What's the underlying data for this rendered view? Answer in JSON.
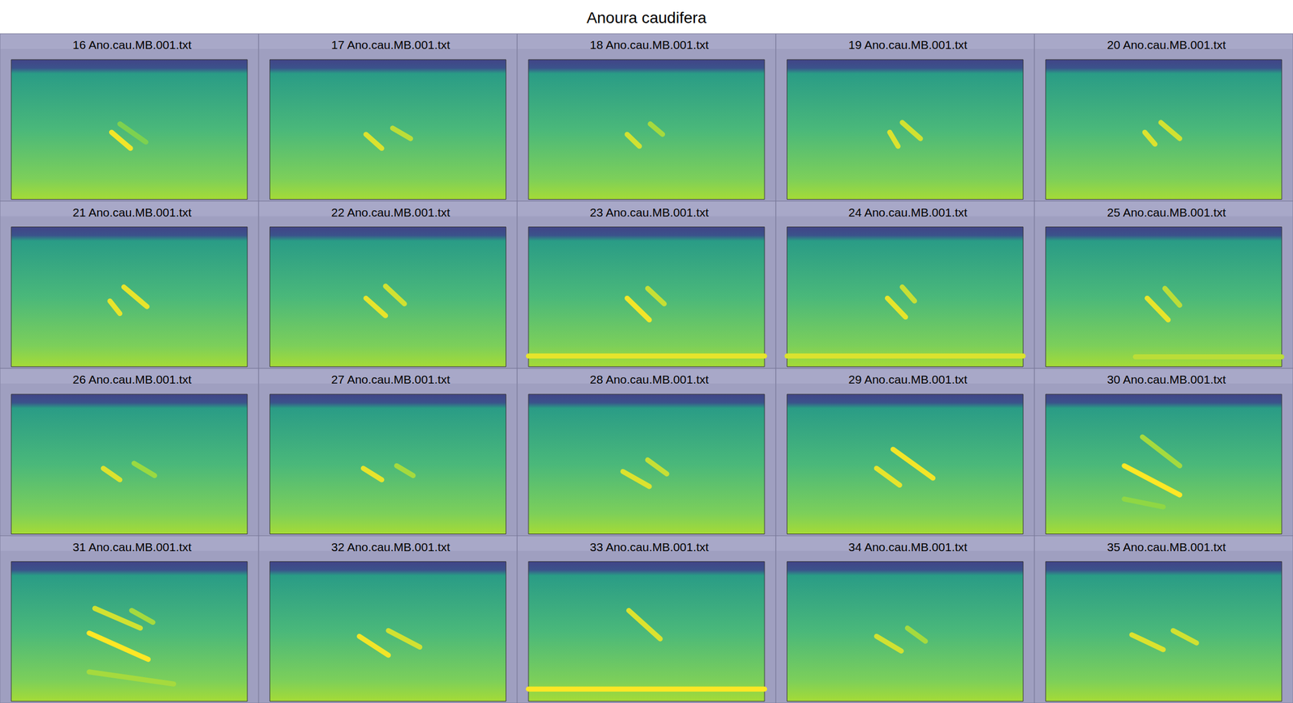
{
  "chart_data": {
    "type": "spectrogram",
    "title": "Anoura caudifera",
    "tick_labels": false,
    "grid": false,
    "xlim": [
      0,
      100
    ],
    "ylim": [
      0,
      100
    ],
    "panels": [
      {
        "title": "16 Ano.cau.MB.001.txt",
        "calls": [
          {
            "x": [
              42.5,
              50.5
            ],
            "y": [
              48,
              36.5
            ],
            "level": 0.95
          },
          {
            "x": [
              46,
              57
            ],
            "y": [
              54,
              41
            ],
            "level": 0.4
          }
        ]
      },
      {
        "title": "17 Ano.cau.MB.001.txt",
        "calls": [
          {
            "x": [
              40.7,
              47.4
            ],
            "y": [
              46.5,
              36.5
            ],
            "level": 0.85
          },
          {
            "x": [
              52,
              59.6
            ],
            "y": [
              51,
              43.5
            ],
            "level": 0.7
          }
        ]
      },
      {
        "title": "18 Ano.cau.MB.001.txt",
        "calls": [
          {
            "x": [
              41.8,
              47
            ],
            "y": [
              46.5,
              38
            ],
            "level": 0.8
          },
          {
            "x": [
              51.6,
              56.8
            ],
            "y": [
              54,
              46.5
            ],
            "level": 0.6
          }
        ]
      },
      {
        "title": "19 Ano.cau.MB.001.txt",
        "calls": [
          {
            "x": [
              43.5,
              47
            ],
            "y": [
              48,
              38
            ],
            "level": 0.85
          },
          {
            "x": [
              48.8,
              56.5
            ],
            "y": [
              55,
              43.5
            ],
            "level": 0.8
          }
        ]
      },
      {
        "title": "20 Ano.cau.MB.001.txt",
        "calls": [
          {
            "x": [
              42,
              46.3
            ],
            "y": [
              48,
              39.5
            ],
            "level": 0.85
          },
          {
            "x": [
              48.8,
              56.8
            ],
            "y": [
              55,
              43.5
            ],
            "level": 0.8
          }
        ]
      },
      {
        "title": "21 Ano.cau.MB.001.txt",
        "calls": [
          {
            "x": [
              41.8,
              46
            ],
            "y": [
              47,
              38
            ],
            "level": 0.9
          },
          {
            "x": [
              47.7,
              57.5
            ],
            "y": [
              57,
              43
            ],
            "level": 0.9
          }
        ]
      },
      {
        "title": "22 Ano.cau.MB.001.txt",
        "calls": [
          {
            "x": [
              40.7,
              49
            ],
            "y": [
              49,
              36.5
            ],
            "level": 0.9
          },
          {
            "x": [
              49,
              57
            ],
            "y": [
              57.6,
              45
            ],
            "level": 0.8
          }
        ]
      },
      {
        "title": "23 Ano.cau.MB.001.txt",
        "calls": [
          {
            "x": [
              41.8,
              51.2
            ],
            "y": [
              49,
              33.5
            ],
            "level": 0.95
          },
          {
            "x": [
              50.5,
              57.5
            ],
            "y": [
              56,
              45
            ],
            "level": 0.75
          },
          {
            "x": [
              0,
              100
            ],
            "y": [
              7.6,
              7.6
            ],
            "level": 0.9
          }
        ]
      },
      {
        "title": "24 Ano.cau.MB.001.txt",
        "calls": [
          {
            "x": [
              42.5,
              50.2
            ],
            "y": [
              49,
              35.5
            ],
            "level": 0.9
          },
          {
            "x": [
              48.8,
              54
            ],
            "y": [
              57,
              47
            ],
            "level": 0.75
          },
          {
            "x": [
              0,
              100
            ],
            "y": [
              7.6,
              7.6
            ],
            "level": 0.85
          }
        ]
      },
      {
        "title": "25 Ano.cau.MB.001.txt",
        "calls": [
          {
            "x": [
              43,
              51.9
            ],
            "y": [
              49,
              33.5
            ],
            "level": 0.9
          },
          {
            "x": [
              50.5,
              56.8
            ],
            "y": [
              56,
              44
            ],
            "level": 0.7
          },
          {
            "x": [
              38,
              100
            ],
            "y": [
              7,
              7
            ],
            "level": 0.7
          }
        ]
      },
      {
        "title": "26 Ano.cau.MB.001.txt",
        "calls": [
          {
            "x": [
              39,
              46
            ],
            "y": [
              47,
              38.8
            ],
            "level": 0.85
          },
          {
            "x": [
              52,
              60.7
            ],
            "y": [
              50.6,
              41.8
            ],
            "level": 0.55
          }
        ]
      },
      {
        "title": "27 Ano.cau.MB.001.txt",
        "calls": [
          {
            "x": [
              39.6,
              47.4
            ],
            "y": [
              47,
              38.8
            ],
            "level": 0.9
          },
          {
            "x": [
              53.7,
              60.7
            ],
            "y": [
              48.8,
              41.8
            ],
            "level": 0.6
          }
        ]
      },
      {
        "title": "28 Ano.cau.MB.001.txt",
        "calls": [
          {
            "x": [
              40,
              51.2
            ],
            "y": [
              44.7,
              34
            ],
            "level": 0.85
          },
          {
            "x": [
              50.5,
              58.6
            ],
            "y": [
              53,
              43
            ],
            "level": 0.75
          }
        ]
      },
      {
        "title": "29 Ano.cau.MB.001.txt",
        "calls": [
          {
            "x": [
              37.9,
              47.7
            ],
            "y": [
              47,
              35
            ],
            "level": 0.9
          },
          {
            "x": [
              44.9,
              61.8
            ],
            "y": [
              60.6,
              40
            ],
            "level": 0.95
          }
        ]
      },
      {
        "title": "30 Ano.cau.MB.001.txt",
        "calls": [
          {
            "x": [
              33.3,
              56.8
            ],
            "y": [
              48.8,
              28
            ],
            "level": 1
          },
          {
            "x": [
              41,
              56.8
            ],
            "y": [
              69.4,
              48.8
            ],
            "level": 0.6
          },
          {
            "x": [
              33.3,
              49.8
            ],
            "y": [
              25,
              19.4
            ],
            "level": 0.5
          }
        ]
      },
      {
        "title": "31 Ano.cau.MB.001.txt",
        "calls": [
          {
            "x": [
              35.4,
              54.7
            ],
            "y": [
              66.5,
              52.4
            ],
            "level": 0.8
          },
          {
            "x": [
              51,
              60
            ],
            "y": [
              65,
              56.5
            ],
            "level": 0.6
          },
          {
            "x": [
              33,
              58
            ],
            "y": [
              48.8,
              30
            ],
            "level": 1
          },
          {
            "x": [
              33,
              68.8
            ],
            "y": [
              21,
              12.4
            ],
            "level": 0.6
          }
        ]
      },
      {
        "title": "32 Ano.cau.MB.001.txt",
        "calls": [
          {
            "x": [
              37.9,
              50.2
            ],
            "y": [
              46.5,
              33
            ],
            "level": 0.95
          },
          {
            "x": [
              50.2,
              63.5
            ],
            "y": [
              50.6,
              38.8
            ],
            "level": 0.8
          }
        ]
      },
      {
        "title": "33 Ano.cau.MB.001.txt",
        "calls": [
          {
            "x": [
              42.5,
              55.8
            ],
            "y": [
              65,
              44.7
            ],
            "level": 0.85
          },
          {
            "x": [
              0,
              100
            ],
            "y": [
              8.8,
              8.8
            ],
            "level": 1
          }
        ]
      },
      {
        "title": "34 Ano.cau.MB.001.txt",
        "calls": [
          {
            "x": [
              37.9,
              48.4
            ],
            "y": [
              46.5,
              36
            ],
            "level": 0.8
          },
          {
            "x": [
              51,
              58.6
            ],
            "y": [
              52.4,
              43
            ],
            "level": 0.6
          }
        ]
      },
      {
        "title": "35 Ano.cau.MB.001.txt",
        "calls": [
          {
            "x": [
              36.5,
              49.8
            ],
            "y": [
              47.6,
              37
            ],
            "level": 0.85
          },
          {
            "x": [
              54,
              63.9
            ],
            "y": [
              50.6,
              41.8
            ],
            "level": 0.8
          }
        ]
      }
    ]
  }
}
